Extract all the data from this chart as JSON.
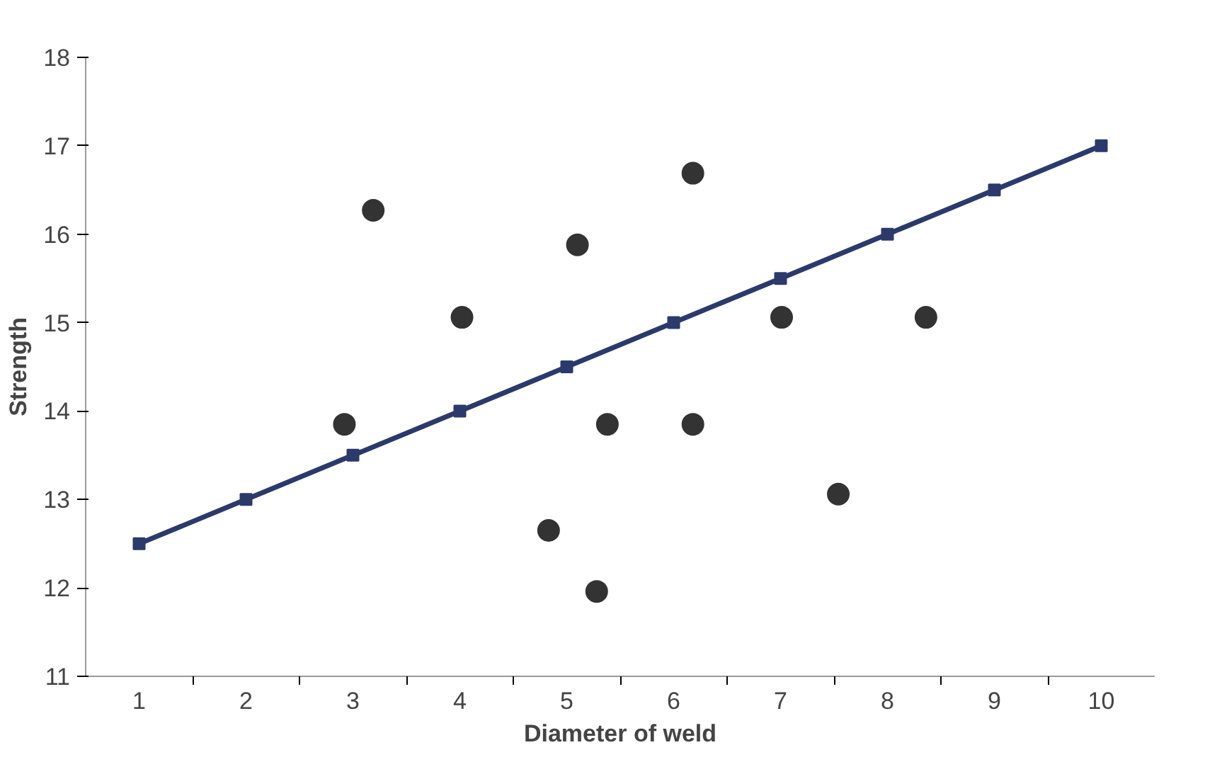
{
  "chart_data": {
    "type": "scatter",
    "xlabel": "Diameter of weld",
    "ylabel": "Strength",
    "xlim": [
      0.5,
      10.5
    ],
    "ylim": [
      11,
      18
    ],
    "xticks": [
      1,
      2,
      3,
      4,
      5,
      6,
      7,
      8,
      9,
      10
    ],
    "yticks": [
      11,
      12,
      13,
      14,
      15,
      16,
      17,
      18
    ],
    "grid": false,
    "series": [
      {
        "color": "#333333",
        "marker": "circle",
        "x": [
          2.92,
          3.19,
          4.02,
          4.83,
          5.1,
          5.28,
          5.38,
          6.18,
          6.18,
          7.01,
          7.54,
          8.36
        ],
        "values": [
          13.85,
          16.27,
          15.06,
          12.65,
          15.88,
          11.96,
          13.85,
          16.69,
          13.85,
          15.06,
          13.06,
          15.06
        ]
      },
      {
        "type": "line",
        "color": "#2b3a6b",
        "marker": "square",
        "line_style": "solid",
        "x": [
          1,
          2,
          3,
          4,
          5,
          6,
          7,
          8,
          9,
          10
        ],
        "values": [
          12.5,
          13,
          13.5,
          14,
          14.5,
          15,
          15.5,
          16,
          16.5,
          17
        ]
      }
    ]
  }
}
